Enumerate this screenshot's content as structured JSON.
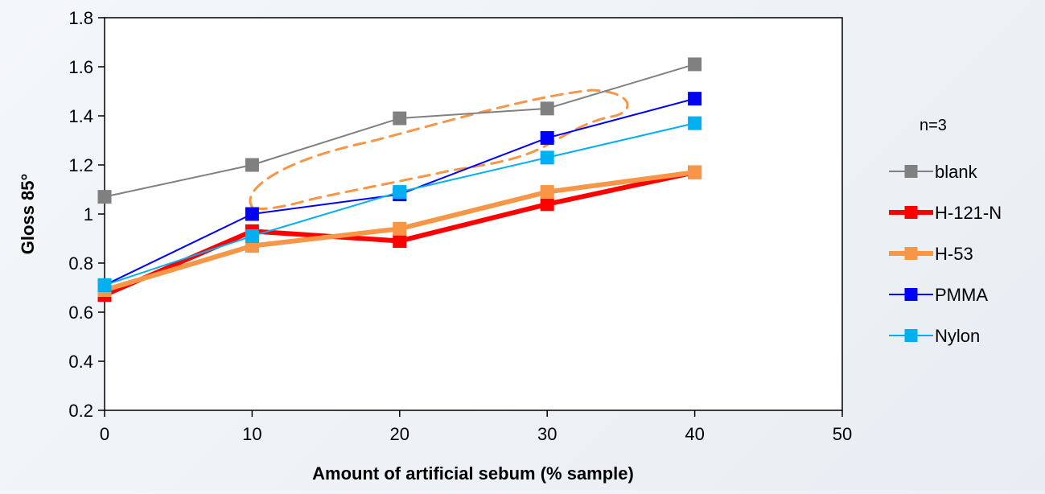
{
  "chart_data": {
    "type": "line",
    "xlabel": "Amount of artificial sebum (% sample)",
    "ylabel": "Gloss 85°",
    "xlim": [
      0,
      50
    ],
    "ylim": [
      0.2,
      1.8
    ],
    "xticks": [
      0,
      10,
      20,
      30,
      40,
      50
    ],
    "yticks": [
      0.2,
      0.4,
      0.6,
      0.8,
      1,
      1.2,
      1.4,
      1.6,
      1.8
    ],
    "grid": false,
    "legend_position": "right",
    "annotation": "n=3",
    "x": [
      0,
      10,
      20,
      30,
      40
    ],
    "series": [
      {
        "name": "blank",
        "color": "#808080",
        "width": 2,
        "marker": 16,
        "values": [
          1.07,
          1.2,
          1.39,
          1.43,
          1.61
        ]
      },
      {
        "name": "H-121-N",
        "color": "#ff0000",
        "width": 6,
        "marker": 16,
        "values": [
          0.67,
          0.93,
          0.89,
          1.04,
          1.17
        ]
      },
      {
        "name": "H-53",
        "color": "#f79646",
        "width": 6,
        "marker": 16,
        "values": [
          0.69,
          0.87,
          0.94,
          1.09,
          1.17
        ]
      },
      {
        "name": "PMMA",
        "color": "#0000ff",
        "width": 2,
        "marker": 16,
        "values": [
          0.71,
          1.0,
          1.08,
          1.31,
          1.47
        ]
      },
      {
        "name": "Nylon",
        "color": "#00b0f0",
        "width": 2,
        "marker": 16,
        "values": [
          0.71,
          0.91,
          1.09,
          1.23,
          1.37
        ]
      }
    ],
    "highlight": {
      "shape": "dashed-ellipse",
      "color": "#f79646"
    }
  }
}
